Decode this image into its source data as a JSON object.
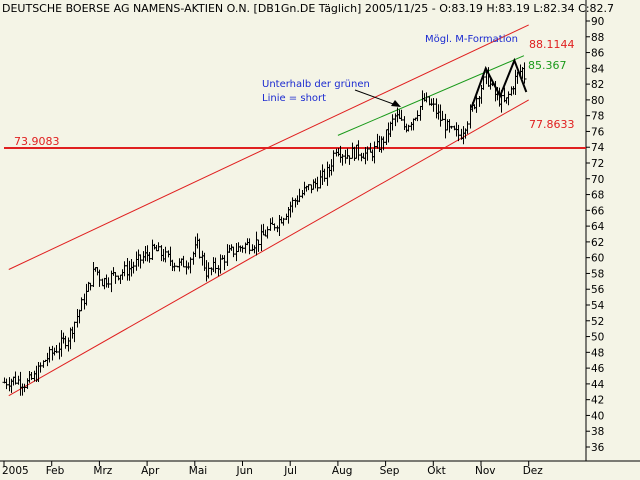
{
  "chart_data": {
    "type": "ohlc",
    "title": "DEUTSCHE BOERSE AG NAMENS-AKTIEN O.N. [DB1Gn.DE  Täglich] 2005/11/25 - O:83.19 H:83.19 L:82.34 C:82.7",
    "xlabel": "",
    "ylabel": "",
    "ylim": [
      35,
      91
    ],
    "yticks": [
      36,
      38,
      40,
      42,
      44,
      46,
      48,
      50,
      52,
      54,
      56,
      58,
      60,
      62,
      64,
      66,
      68,
      70,
      72,
      74,
      76,
      78,
      80,
      82,
      84,
      86,
      88,
      90
    ],
    "x_axis_labels": [
      {
        "label": "2005",
        "month_index": 0
      },
      {
        "label": "Feb",
        "month_index": 1
      },
      {
        "label": "Mrz",
        "month_index": 2
      },
      {
        "label": "Apr",
        "month_index": 3
      },
      {
        "label": "Mai",
        "month_index": 4
      },
      {
        "label": "Jun",
        "month_index": 5
      },
      {
        "label": "Jul",
        "month_index": 6
      },
      {
        "label": "Aug",
        "month_index": 7
      },
      {
        "label": "Sep",
        "month_index": 8
      },
      {
        "label": "Okt",
        "month_index": 9
      },
      {
        "label": "Nov",
        "month_index": 10
      },
      {
        "label": "Dez",
        "month_index": 11
      }
    ],
    "price_path": [
      {
        "m": 0.0,
        "v": 44.2
      },
      {
        "m": 0.2,
        "v": 44.6
      },
      {
        "m": 0.45,
        "v": 44.0
      },
      {
        "m": 0.65,
        "v": 45.0
      },
      {
        "m": 0.85,
        "v": 47.0
      },
      {
        "m": 1.1,
        "v": 48.5
      },
      {
        "m": 1.35,
        "v": 50.0
      },
      {
        "m": 1.55,
        "v": 53.0
      },
      {
        "m": 1.75,
        "v": 56.0
      },
      {
        "m": 1.9,
        "v": 58.8
      },
      {
        "m": 2.05,
        "v": 57.0
      },
      {
        "m": 2.3,
        "v": 57.8
      },
      {
        "m": 2.6,
        "v": 58.5
      },
      {
        "m": 2.9,
        "v": 60.0
      },
      {
        "m": 3.15,
        "v": 61.0
      },
      {
        "m": 3.4,
        "v": 60.0
      },
      {
        "m": 3.65,
        "v": 59.0
      },
      {
        "m": 3.85,
        "v": 59.5
      },
      {
        "m": 4.05,
        "v": 61.5
      },
      {
        "m": 4.25,
        "v": 58.0
      },
      {
        "m": 4.45,
        "v": 59.0
      },
      {
        "m": 4.7,
        "v": 60.5
      },
      {
        "m": 5.0,
        "v": 61.5
      },
      {
        "m": 5.3,
        "v": 62.0
      },
      {
        "m": 5.55,
        "v": 63.5
      },
      {
        "m": 5.8,
        "v": 65.0
      },
      {
        "m": 6.05,
        "v": 67.0
      },
      {
        "m": 6.3,
        "v": 68.5
      },
      {
        "m": 6.55,
        "v": 69.5
      },
      {
        "m": 6.8,
        "v": 71.0
      },
      {
        "m": 6.95,
        "v": 74.0
      },
      {
        "m": 7.15,
        "v": 73.0
      },
      {
        "m": 7.4,
        "v": 73.5
      },
      {
        "m": 7.65,
        "v": 73.0
      },
      {
        "m": 7.9,
        "v": 74.5
      },
      {
        "m": 8.05,
        "v": 76.0
      },
      {
        "m": 8.2,
        "v": 78.0
      },
      {
        "m": 8.4,
        "v": 76.5
      },
      {
        "m": 8.6,
        "v": 78.0
      },
      {
        "m": 8.8,
        "v": 80.0
      },
      {
        "m": 9.0,
        "v": 79.0
      },
      {
        "m": 9.15,
        "v": 77.5
      },
      {
        "m": 9.35,
        "v": 76.0
      },
      {
        "m": 9.55,
        "v": 75.5
      },
      {
        "m": 9.75,
        "v": 78.0
      },
      {
        "m": 9.95,
        "v": 81.0
      },
      {
        "m": 10.1,
        "v": 83.0
      },
      {
        "m": 10.3,
        "v": 80.5
      },
      {
        "m": 10.5,
        "v": 79.5
      },
      {
        "m": 10.7,
        "v": 82.5
      },
      {
        "m": 10.85,
        "v": 84.0
      },
      {
        "m": 10.92,
        "v": 82.7
      }
    ],
    "lines": [
      {
        "name": "channel-upper",
        "color": "#e02020",
        "width": 1,
        "from": {
          "m": 0.1,
          "v": 58.5
        },
        "to": {
          "m": 11.0,
          "v": 89.5
        }
      },
      {
        "name": "channel-lower",
        "color": "#e02020",
        "width": 1,
        "from": {
          "m": 0.1,
          "v": 42.5
        },
        "to": {
          "m": 11.0,
          "v": 80.0
        }
      },
      {
        "name": "horizontal-support",
        "color": "#e02020",
        "width": 2,
        "from": {
          "m": 0.0,
          "v": 73.9083
        },
        "to": {
          "m": 12.2,
          "v": 73.9083
        }
      },
      {
        "name": "green-trendline",
        "color": "#1a9a1a",
        "width": 1,
        "from": {
          "m": 7.0,
          "v": 75.5
        },
        "to": {
          "m": 10.9,
          "v": 85.6
        }
      }
    ],
    "m_formation": [
      {
        "m": 9.8,
        "v": 79.0
      },
      {
        "m": 10.1,
        "v": 84.0
      },
      {
        "m": 10.4,
        "v": 80.5
      },
      {
        "m": 10.7,
        "v": 85.0
      },
      {
        "m": 10.95,
        "v": 81.0
      }
    ],
    "annotations": [
      {
        "id": "level-left",
        "text": "73.9083",
        "color": "#e02020"
      },
      {
        "id": "level-upper",
        "text": "88.1144",
        "color": "#e02020"
      },
      {
        "id": "level-green",
        "text": "85.367",
        "color": "#1a9a1a"
      },
      {
        "id": "level-lower",
        "text": "77.8633",
        "color": "#e02020"
      },
      {
        "id": "note-formation",
        "text": "Mögl. M-Formation",
        "color": "#1c2bd0"
      },
      {
        "id": "note-short-1",
        "text": "Unterhalb der grünen",
        "color": "#1c2bd0"
      },
      {
        "id": "note-short-2",
        "text": "Linie = short",
        "color": "#1c2bd0"
      }
    ],
    "colors": {
      "background": "#f4f4e6",
      "bars": "#000000",
      "axis": "#000000",
      "grid": "#c8c8b8"
    },
    "grid": false
  }
}
